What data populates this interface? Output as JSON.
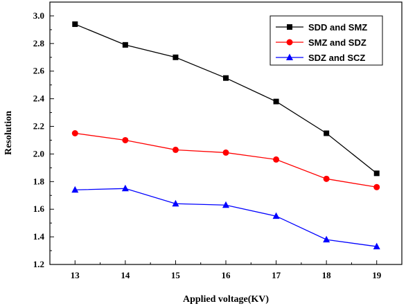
{
  "chart_data": {
    "type": "line",
    "xlabel": "Applied voltage(KV)",
    "ylabel": "Resolution",
    "x": [
      13,
      14,
      15,
      16,
      17,
      18,
      19
    ],
    "xlim": [
      12.5,
      19.5
    ],
    "ylim": [
      1.2,
      3.1
    ],
    "xticks": [
      "13",
      "14",
      "15",
      "16",
      "17",
      "18",
      "19"
    ],
    "yticks": [
      "1.2",
      "1.4",
      "1.6",
      "1.8",
      "2.0",
      "2.2",
      "2.4",
      "2.6",
      "2.8",
      "3.0"
    ],
    "legend_position": "top-right",
    "grid": false,
    "series": [
      {
        "name": "SDD and SMZ",
        "color": "#000000",
        "marker": "square",
        "values": [
          2.94,
          2.79,
          2.7,
          2.55,
          2.38,
          2.15,
          1.86
        ]
      },
      {
        "name": "SMZ and SDZ",
        "color": "#ff0000",
        "marker": "circle",
        "values": [
          2.15,
          2.1,
          2.03,
          2.01,
          1.96,
          1.82,
          1.76
        ]
      },
      {
        "name": "SDZ and SCZ",
        "color": "#0000ff",
        "marker": "triangle",
        "values": [
          1.74,
          1.75,
          1.64,
          1.63,
          1.55,
          1.38,
          1.33
        ]
      }
    ]
  }
}
